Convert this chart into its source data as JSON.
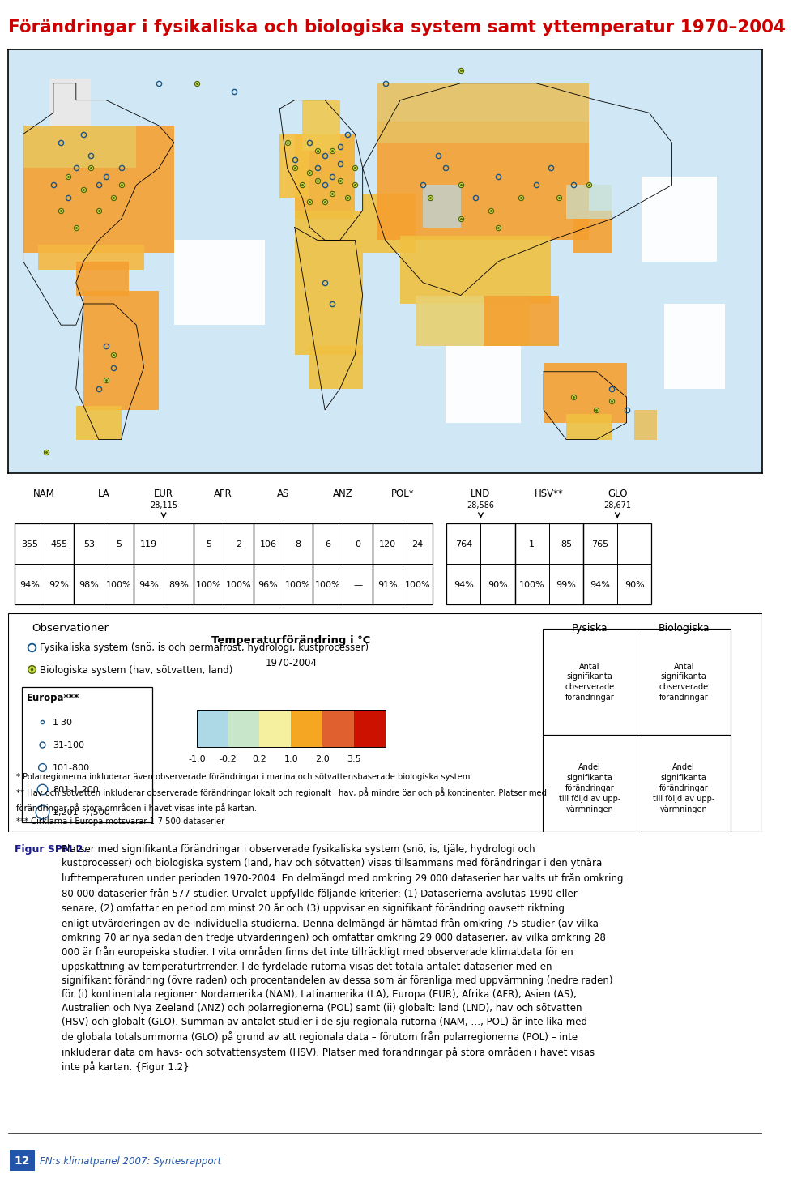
{
  "title": "Förändringar i fysikaliska och biologiska system samt yttemperatur 1970–2004",
  "title_color": "#cc0000",
  "regions": [
    "NAM",
    "LA",
    "EUR",
    "AFR",
    "AS",
    "ANZ",
    "POL*",
    "LND",
    "HSV**",
    "GLO"
  ],
  "row1_values": [
    [
      "355",
      "455"
    ],
    [
      "53",
      "5"
    ],
    [
      "119",
      ""
    ],
    [
      "5",
      "2"
    ],
    [
      "106",
      "8"
    ],
    [
      "6",
      "0"
    ],
    [
      "120",
      "24"
    ],
    [
      "764",
      ""
    ],
    [
      "1",
      "85"
    ],
    [
      "765",
      ""
    ]
  ],
  "row2_values": [
    [
      "94%",
      "92%"
    ],
    [
      "98%",
      "100%"
    ],
    [
      "94%",
      "89%"
    ],
    [
      "100%",
      "100%"
    ],
    [
      "96%",
      "100%"
    ],
    [
      "100%",
      "—"
    ],
    [
      "91%",
      "100%"
    ],
    [
      "94%",
      "90%"
    ],
    [
      "100%",
      "99%"
    ],
    [
      "94%",
      "90%"
    ]
  ],
  "arrow_above": [
    false,
    false,
    true,
    false,
    false,
    false,
    false,
    true,
    false,
    true
  ],
  "above_labels": [
    "",
    "",
    "28,115",
    "",
    "",
    "",
    "",
    "28,586",
    "",
    "28,671"
  ],
  "obs_label": "Observationer",
  "obs1_text": "Fysikaliska system (snö, is och permafrost, hydrologi, kustprocesser)",
  "obs2_text": "Biologiska system (hav, sötvatten, land)",
  "europa_label": "Europa***",
  "size_labels": [
    "1-30",
    "31-100",
    "101-800",
    "801-1,200",
    "1,201 -7,500"
  ],
  "temp_label": "Temperaturförändring i °C",
  "temp_years": "1970-2004",
  "temp_tick_labels": [
    "-1.0",
    "-0.2",
    "0.2",
    "1.0",
    "2.0",
    "3.5"
  ],
  "temp_colors": [
    "#add8e6",
    "#c8e6c9",
    "#f5f0a0",
    "#f5a623",
    "#e06030",
    "#cc1100"
  ],
  "fysiska_label": "Fysiska",
  "biologiska_label": "Biologiska",
  "table_row1_col1": "Antal\nsignifikanta\nobserverade\nförändringar",
  "table_row1_col2": "Antal\nsignifikanta\nobserverade\nförändringar",
  "table_row2_col1": "Andel\nsignifikanta\nförändringar\ntill följd av upp-\nvärmningen",
  "table_row2_col2": "Andel\nsignifikanta\nförändringar\ntill följd av upp-\nvärmningen",
  "footnote1": "* Polarregionerna inkluderar även observerade förändringar i marina och sötvattensbaserade biologiska system",
  "footnote2": "** Hav och sötvatten inkluderar observerade förändringar lokalt och regionalt i hav, på mindre öar och på kontinenter. Platser med",
  "footnote3": "förändringar på stora områden i havet visas inte på kartan.",
  "footnote4": "*** Cirklarna i Europa motsvarar 1-7 500 dataserier",
  "figur_label": "Figur SPM 2.",
  "figur_text": "Platser med signifikanta förändringar i observerade fysikaliska system (snö, is, tjäle, hydrologi och kustprocesser) och biologiska system (land, hav och sötvatten) visas tillsammans med förändringar i den ytnära lufttemperaturen under perioden 1970-2004. En delmängd med omkring 29 000 dataserier har valts ut från omkring 80 000 dataserier från 577 studier. Urvalet uppfyllde följande kriterier: (1) Dataserierna avslutas 1990 eller senare, (2) omfattar en period om minst 20 år och (3) uppvisar en signifikant förändring oavsett riktning enligt utvärderingen av de individuella studierna. Denna delmängd är hämtad från omkring 75 studier (av vilka omkring 70 är nya sedan den tredje utvärderingen) och omfattar omkring 29 000 dataserier, av vilka omkring 28 000 är från europeiska studier. I vita områden finns det inte tillräckligt med observerade klimatdata för en uppskattning av temperaturtrrender. I de fyrdelade rutorna visas det totala antalet dataserier med en signifikant förändring (övre raden) och procentandelen av dessa som är förenliga med uppvärmning (nedre raden) för (i) kontinentala regioner: Nordamerika (NAM), Latinamerika (LA), Europa (EUR), Afrika (AFR), Asien (AS), Australien och Nya Zeeland (ANZ) och polarregionerna (POL) samt (ii) globalt: land (LND), hav och sötvatten (HSV) och globalt (GLO). Summan av antalet studier i de sju regionala rutorna (NAM, …, POL) är inte lika med de globala totalsummorna (GLO) på grund av att regionala data – förutom från polarregionerna (POL) – inte inkluderar data om havs- och sötvattensystem (HSV). Platser med förändringar på stora områden i havet visas inte på kartan. {Figur 1.2}",
  "page_label": "12",
  "page_text": "FN:s klimatpanel 2007: Syntesrapport",
  "map_bg_color": "#d0e8f5",
  "physical_dot_color": "#2060a0",
  "biological_dot_color": "#80a030",
  "biological_dot_fill": "#d8e850"
}
